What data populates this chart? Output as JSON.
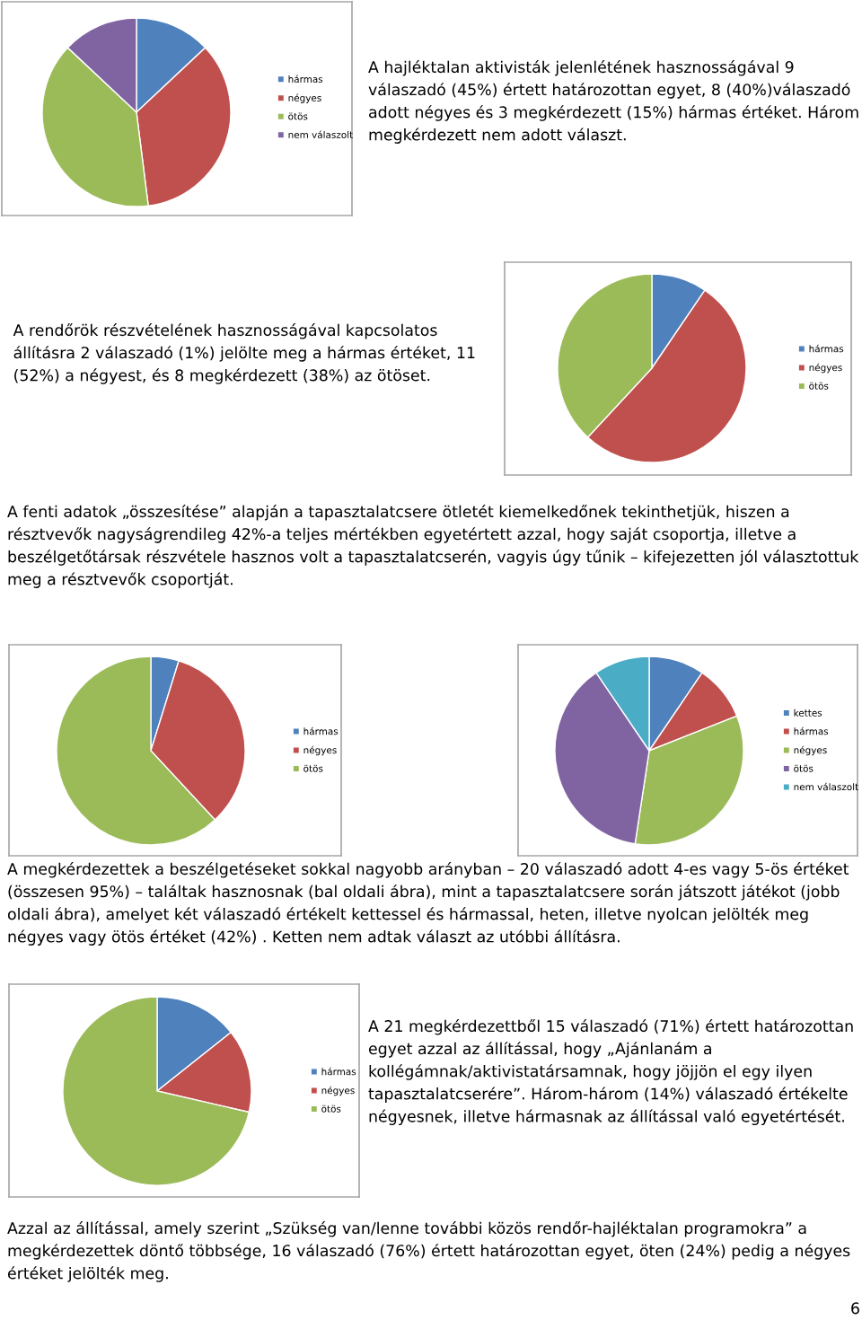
{
  "chart_data": [
    {
      "type": "pie",
      "categories": [
        "hármas",
        "négyes",
        "ötös",
        "nem válaszolt"
      ],
      "values": [
        13,
        35,
        39,
        13
      ],
      "colors": [
        "#4f81bd",
        "#c0504d",
        "#9bbb59",
        "#8064a2"
      ],
      "legend": "right",
      "annotations": [
        "A hajléktalan aktivisták jelenlétének hasznosságával 9 válaszadó (45%) értett határozottan egyet, 8 (40%)válaszadó adott négyes és 3 megkérdezett (15%) hármas értéket. Három megkérdezett nem adott választ."
      ]
    },
    {
      "type": "pie",
      "categories": [
        "hármas",
        "négyes",
        "ötös"
      ],
      "values": [
        9.5,
        52.4,
        38.1
      ],
      "colors": [
        "#4f81bd",
        "#c0504d",
        "#9bbb59"
      ],
      "legend": "right",
      "annotations": [
        "A rendőrök részvételének hasznosságával kapcsolatos állításra 2 válaszadó (1%) jelölte meg a hármas értéket, 11 (52%) a négyest, és 8 megkérdezett (38%) az ötöset.",
        "A fenti adatok „összesítése” alapján a tapasztalatcsere ötletét kiemelkedőnek tekinthetjük, hiszen a résztvevők nagyságrendileg 42%-a teljes mértékben egyetértett azzal, hogy saját csoportja, illetve a beszélgetőtársak részvétele hasznos volt a tapasztalatcserén, vagyis úgy tűnik – kifejezetten jól választottuk meg a résztvevők csoportját."
      ]
    },
    {
      "type": "pie",
      "categories": [
        "hármas",
        "négyes",
        "ötös"
      ],
      "values": [
        4.8,
        33.3,
        61.9
      ],
      "colors": [
        "#4f81bd",
        "#c0504d",
        "#9bbb59"
      ],
      "legend": "right"
    },
    {
      "type": "pie",
      "categories": [
        "kettes",
        "hármas",
        "négyes",
        "ötös",
        "nem válaszolt"
      ],
      "values": [
        9.5,
        9.5,
        33.4,
        38.1,
        9.5
      ],
      "colors": [
        "#4f81bd",
        "#c0504d",
        "#9bbb59",
        "#8064a2",
        "#4bacc6"
      ],
      "legend": "right",
      "annotations": [
        "A megkérdezettek a beszélgetéseket sokkal nagyobb arányban – 20 válaszadó adott 4-es vagy 5-ös értéket (összesen 95%) – találtak hasznosnak (bal oldali ábra), mint a tapasztalatcsere során játszott játékot (jobb oldali ábra), amelyet két válaszadó értékelt kettessel és hármassal, heten, illetve nyolcan jelölték meg négyes vagy ötös értéket (42%) . Ketten nem adtak választ az utóbbi állításra."
      ]
    },
    {
      "type": "pie",
      "categories": [
        "hármas",
        "négyes",
        "ötös"
      ],
      "values": [
        14.3,
        14.3,
        71.4
      ],
      "colors": [
        "#4f81bd",
        "#c0504d",
        "#9bbb59"
      ],
      "legend": "right",
      "annotations": [
        "A 21 megkérdezettből 15 válaszadó (71%) értett határozottan egyet azzal az állítással, hogy „Ajánlanám a kollégámnak/aktivistatársamnak, hogy jöjjön el egy ilyen tapasztalatcserére”. Három-három (14%) válaszadó értékelte négyesnek, illetve hármasnak az állítással való egyetértését.",
        "Azzal az állítással, amely szerint „Szükség van/lenne további közös rendőr-hajléktalan programokra” a megkérdezettek döntő többsége, 16 válaszadó (76%) értett határozottan egyet, öten (24%) pedig a négyes értéket jelölték meg.",
        "6"
      ]
    }
  ]
}
